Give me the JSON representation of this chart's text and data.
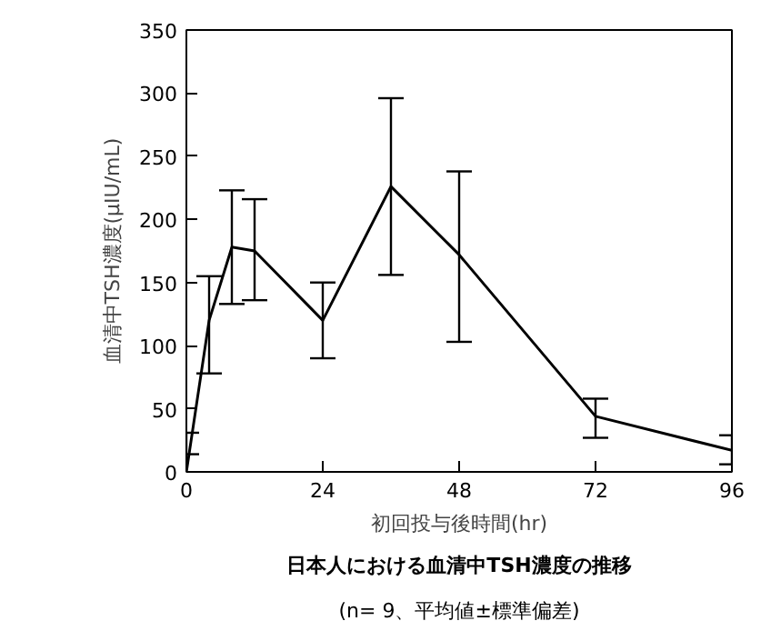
{
  "chart_data": {
    "type": "line",
    "title": "日本人における血清中TSH濃度の推移",
    "subtitle": "(n= 9、平均値±標準偏差)",
    "xlabel": "初回投与後時間(hr)",
    "ylabel": "血清中TSH濃度(μIU/mL)",
    "x": [
      0,
      4,
      8,
      12,
      24,
      36,
      48,
      72,
      96
    ],
    "series": [
      {
        "color": "#000000",
        "values": [
          0,
          120,
          178,
          175,
          120,
          226,
          172,
          44,
          17
        ],
        "errors": [
          [
            14,
            31
          ],
          [
            78,
            155
          ],
          [
            133,
            223
          ],
          [
            136,
            216
          ],
          [
            90,
            150
          ],
          [
            156,
            296
          ],
          [
            103,
            238
          ],
          [
            27,
            58
          ],
          [
            6,
            29
          ]
        ]
      }
    ],
    "xlim": [
      0,
      96
    ],
    "ylim": [
      0,
      350
    ],
    "xticks": [
      0,
      24,
      48,
      72,
      96
    ],
    "yticks": [
      0,
      50,
      100,
      150,
      200,
      250,
      300,
      350
    ],
    "grid": false,
    "marker": "none",
    "line_style": "solid"
  }
}
